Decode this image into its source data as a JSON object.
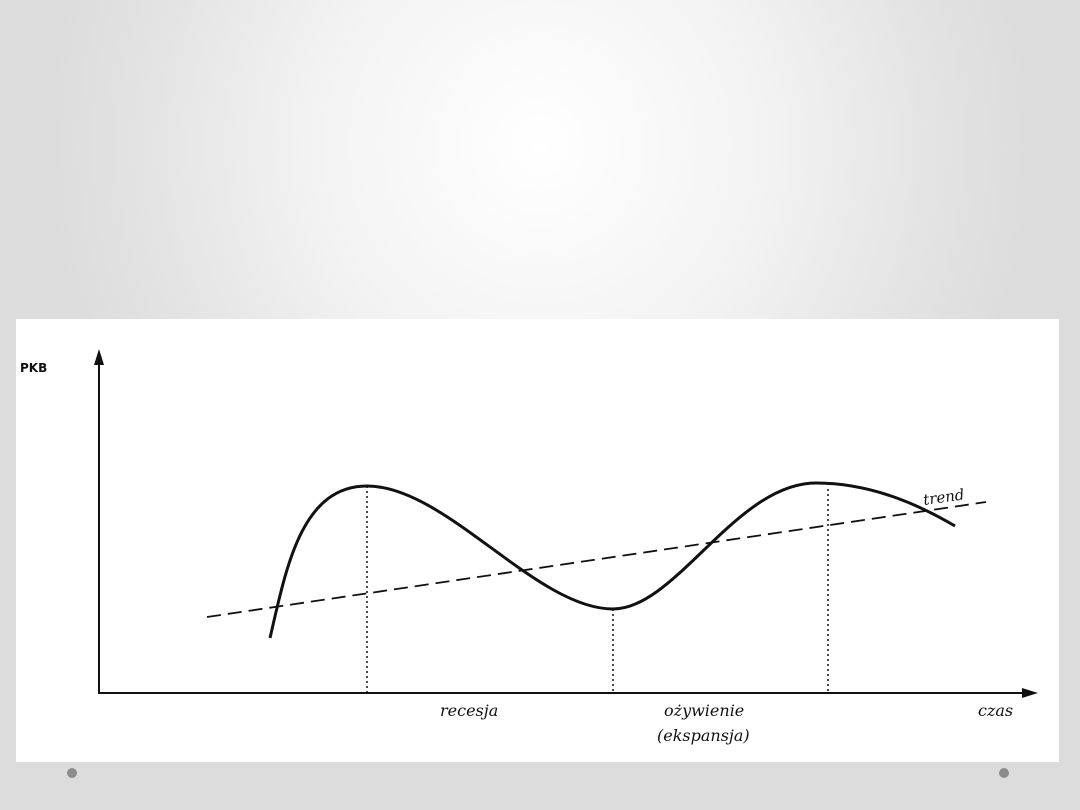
{
  "diagram": {
    "y_axis_label": "PKB",
    "x_axis_label": "czas",
    "trend_label": "trend",
    "phase_labels": {
      "recession": "recesja",
      "recovery_line1": "ożywienie",
      "recovery_line2": "(ekspansja)"
    }
  },
  "footer": {
    "dot_color": "#8c8c8c"
  }
}
